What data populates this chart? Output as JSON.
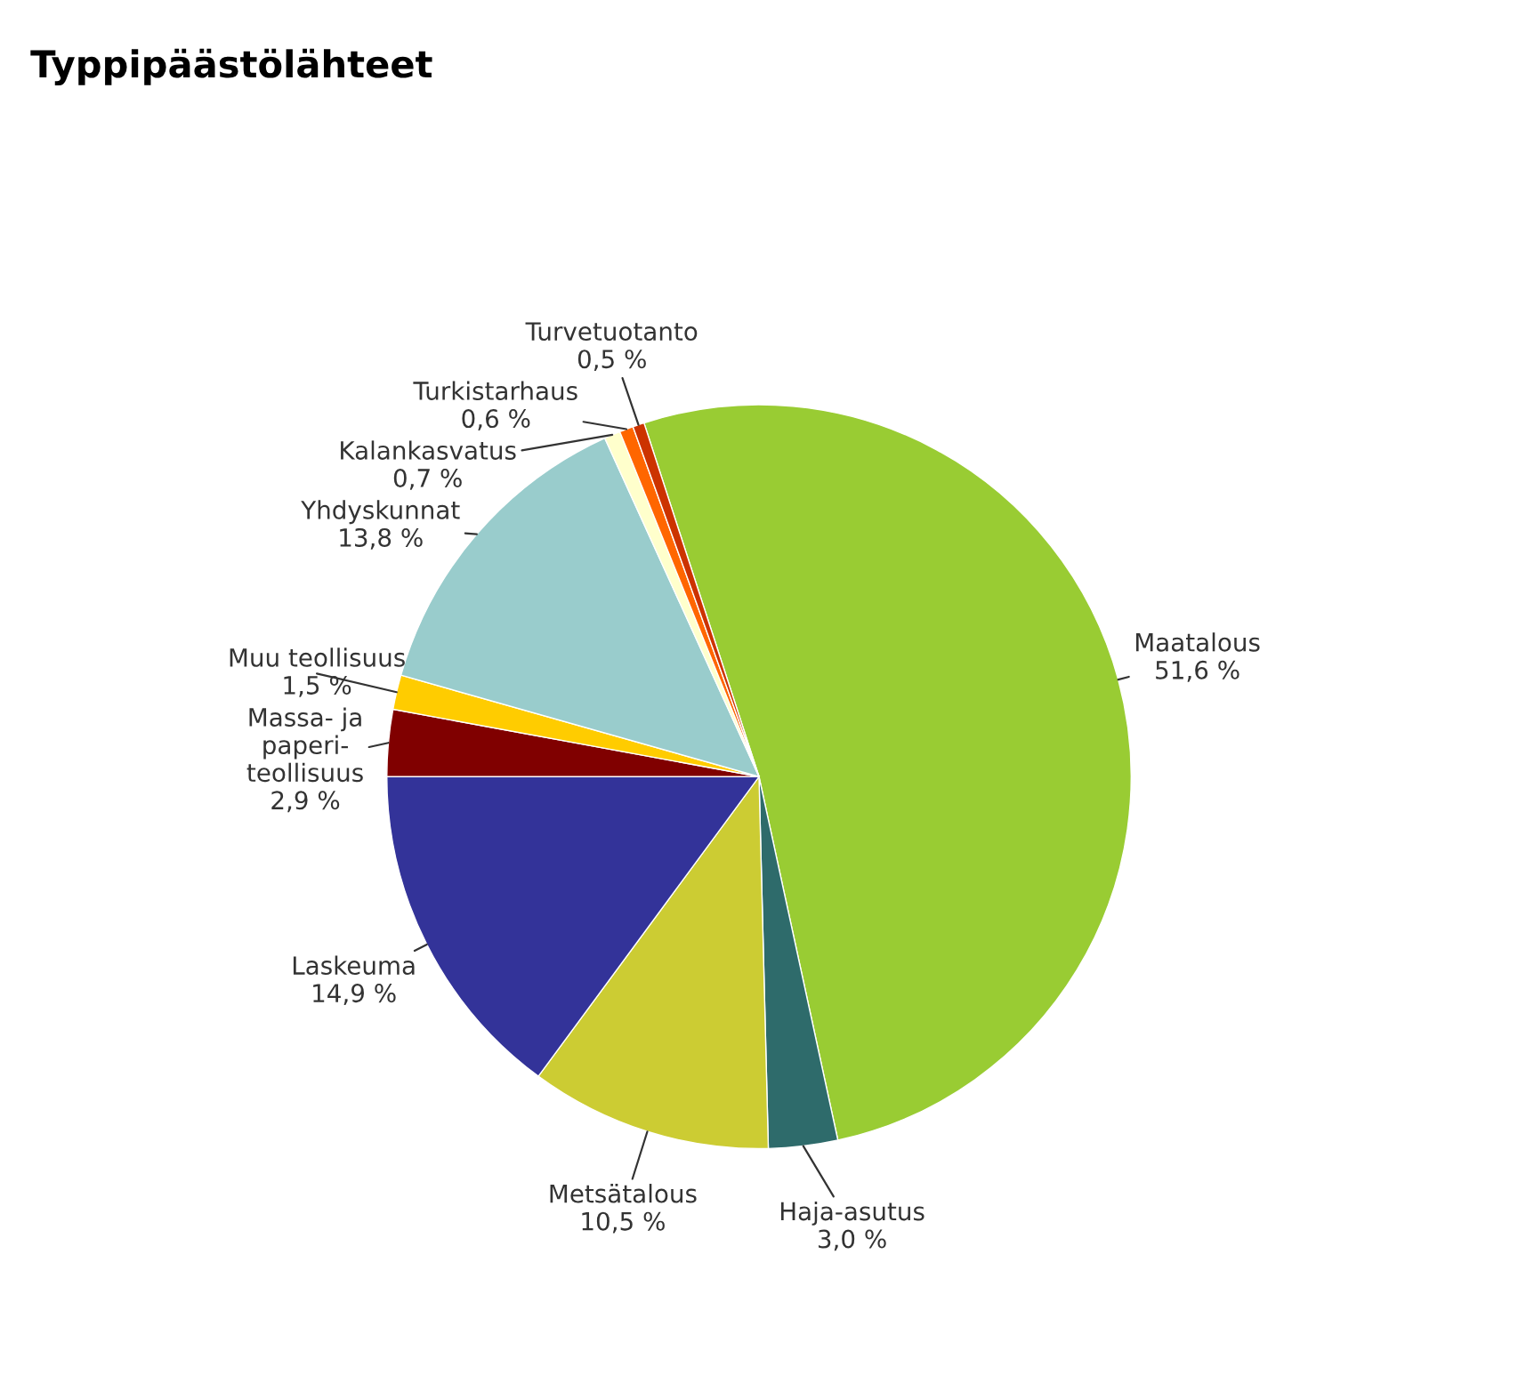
{
  "chart_data": {
    "type": "pie",
    "title": "Typpipäästölähteet",
    "categories": [
      "Maatalous",
      "Haja-asutus",
      "Metsätalous",
      "Laskeuma",
      "Massa- ja\npaperi-\nteollisuus",
      "Muu teollisuus",
      "Yhdyskunnat",
      "Kalankasvatus",
      "Turkistarhaus",
      "Turvetuotanto"
    ],
    "values": [
      51.6,
      3.0,
      10.5,
      14.9,
      2.9,
      1.5,
      13.8,
      0.7,
      0.6,
      0.5
    ],
    "value_labels": [
      "51,6 %",
      "3,0 %",
      "10,5 %",
      "14,9 %",
      "2,9 %",
      "1,5 %",
      "13,8 %",
      "0,7 %",
      "0,6 %",
      "0,5 %"
    ],
    "colors": [
      "#99cc33",
      "#2e6b6b",
      "#cccc33",
      "#333399",
      "#800000",
      "#ffcc00",
      "#99cccc",
      "#ffffcc",
      "#ff6600",
      "#cc3300"
    ],
    "legend": false
  }
}
